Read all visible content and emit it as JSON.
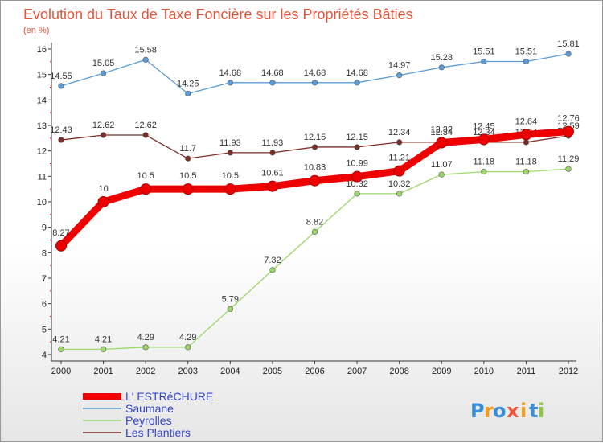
{
  "chart_data": {
    "type": "line",
    "title": "Evolution du Taux de Taxe Foncière sur les Propriétés Bâties",
    "ylabel": "(en %)",
    "categories": [
      "2000",
      "2001",
      "2002",
      "2003",
      "2004",
      "2005",
      "2006",
      "2007",
      "2008",
      "2009",
      "2010",
      "2011",
      "2012"
    ],
    "ylim": [
      4,
      16
    ],
    "yticks": [
      4,
      5,
      6,
      7,
      8,
      9,
      10,
      11,
      12,
      13,
      14,
      15,
      16
    ],
    "series": [
      {
        "name": "Saumane",
        "color": "#5b9bd5",
        "values": [
          14.55,
          15.05,
          15.58,
          14.25,
          14.68,
          14.68,
          14.68,
          14.68,
          14.97,
          15.28,
          15.51,
          15.51,
          15.81
        ],
        "labels": [
          "14.55",
          "15.05",
          "15.58",
          "14.25",
          "14.68",
          "14.68",
          "14.68",
          "14.68",
          "14.97",
          "15.28",
          "15.51",
          "15.51",
          "15.81"
        ]
      },
      {
        "name": "Les Plantiers",
        "color": "#7b2d26",
        "values": [
          12.43,
          12.62,
          12.62,
          11.7,
          11.93,
          11.93,
          12.15,
          12.15,
          12.34,
          12.34,
          12.34,
          12.34,
          12.59
        ],
        "labels": [
          "12.43",
          "12.62",
          "12.62",
          "11.7",
          "11.93",
          "11.93",
          "12.15",
          "12.15",
          "12.34",
          "12.34",
          "12.34",
          "12.34",
          "12.59"
        ]
      },
      {
        "name": "Peyrolles",
        "color": "#9ad86a",
        "values": [
          4.21,
          4.21,
          4.29,
          4.29,
          5.79,
          7.32,
          8.82,
          10.32,
          10.32,
          11.07,
          11.18,
          11.18,
          11.29
        ],
        "labels": [
          "4.21",
          "4.21",
          "4.29",
          "4.29",
          "5.79",
          "7.32",
          "8.82",
          "10.32",
          "10.32",
          "11.07",
          "11.18",
          "11.18",
          "11.29"
        ]
      },
      {
        "name": "L' ESTRéCHURE",
        "color": "#ee0000",
        "values": [
          8.27,
          10,
          10.5,
          10.5,
          10.5,
          10.61,
          10.83,
          10.99,
          11.21,
          12.32,
          12.45,
          12.64,
          12.76
        ],
        "labels": [
          "8.27",
          "10",
          "10.5",
          "10.5",
          "10.5",
          "10.61",
          "10.83",
          "10.99",
          "11.21",
          "12.32",
          "12.45",
          "12.64",
          "12.76"
        ]
      }
    ],
    "legend_order": [
      "L' ESTRéCHURE",
      "Saumane",
      "Peyrolles",
      "Les Plantiers"
    ],
    "grid": false
  },
  "logo": {
    "letters": [
      "P",
      "r",
      "o",
      "x",
      "i",
      "t",
      "i"
    ],
    "colors": [
      "#3a8fd8",
      "#f29b1d",
      "#3a8fd8",
      "#e8543a",
      "#f29b1d",
      "#3a8fd8",
      "#8cc63f"
    ]
  }
}
